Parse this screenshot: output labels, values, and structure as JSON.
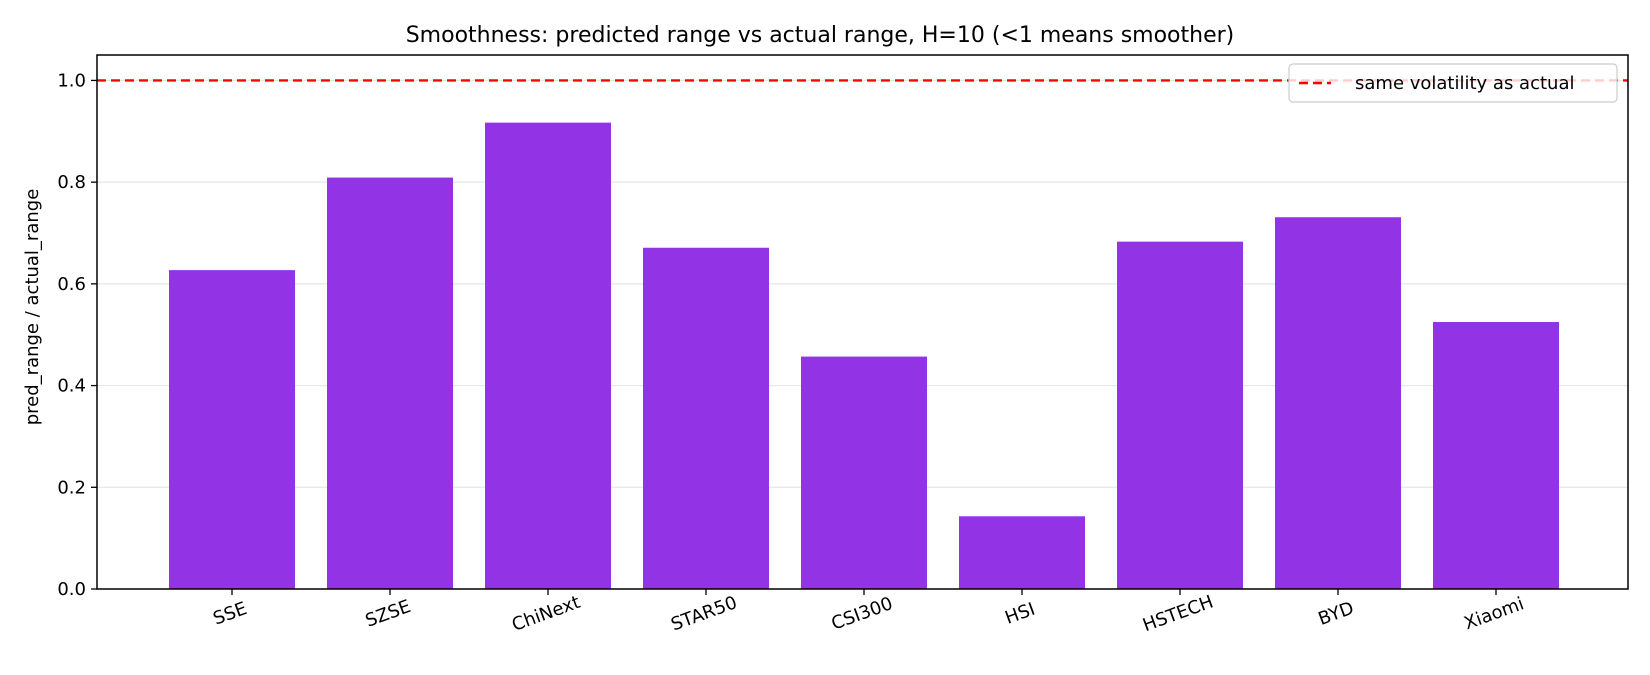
{
  "chart_data": {
    "type": "bar",
    "title": "Smoothness: predicted range vs actual range, H=10 (<1 means smoother)",
    "xlabel": "",
    "ylabel": "pred_range / actual_range",
    "categories": [
      "SSE",
      "SZSE",
      "ChiNext",
      "STAR50",
      "CSI300",
      "HSI",
      "HSTECH",
      "BYD",
      "Xiaomi"
    ],
    "values": [
      0.627,
      0.809,
      0.917,
      0.671,
      0.457,
      0.143,
      0.683,
      0.731,
      0.525
    ],
    "ylim": [
      0,
      1.05
    ],
    "yticks": [
      0.0,
      0.2,
      0.4,
      0.6,
      0.8,
      1.0
    ],
    "ytick_labels": [
      "0.0",
      "0.2",
      "0.4",
      "0.6",
      "0.8",
      "1.0"
    ],
    "grid": "horizontal",
    "legend_position": "top-right",
    "bar_color": "#9333e6",
    "reference_line": {
      "y": 1.0,
      "label": "same volatility as actual",
      "color": "#ff0000",
      "style": "dashed"
    }
  }
}
